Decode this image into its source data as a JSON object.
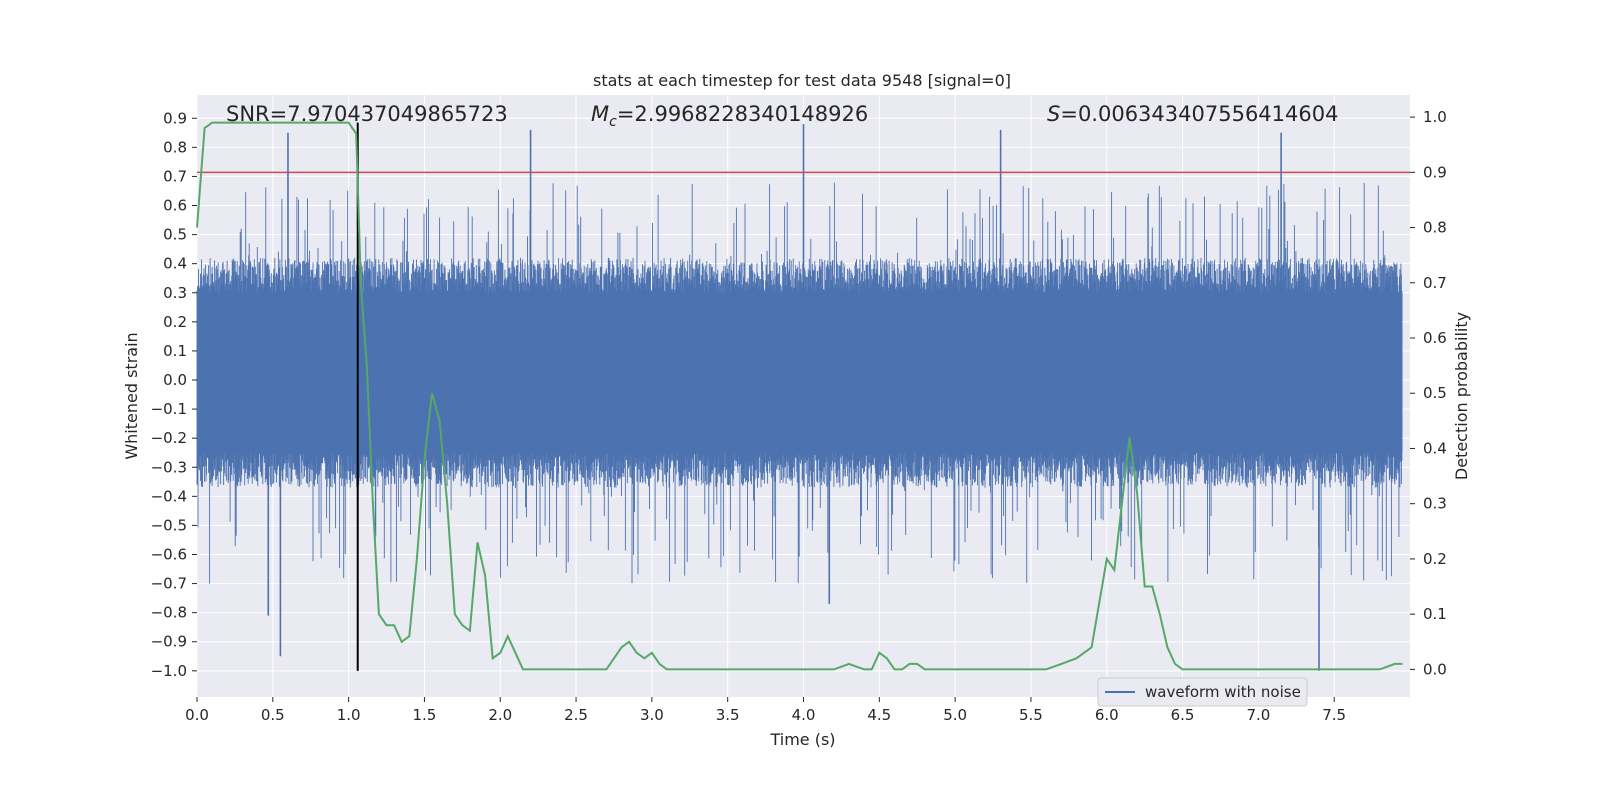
{
  "chart_data": {
    "type": "line",
    "title": "stats at each timestep for test data 9548 [signal=0]",
    "xlabel": "Time (s)",
    "ylabel_left": "Whitened strain",
    "ylabel_right": "Detection probability",
    "xlim": [
      0.0,
      8.0
    ],
    "ylim_left": [
      -1.09,
      0.98
    ],
    "ylim_right": [
      -0.05,
      1.04
    ],
    "x_ticks": [
      "0.0",
      "0.5",
      "1.0",
      "1.5",
      "2.0",
      "2.5",
      "3.0",
      "3.5",
      "4.0",
      "4.5",
      "5.0",
      "5.5",
      "6.0",
      "6.5",
      "7.0",
      "7.5"
    ],
    "y_left_ticks": [
      "0.9",
      "0.8",
      "0.7",
      "0.6",
      "0.5",
      "0.4",
      "0.3",
      "0.2",
      "0.1",
      "0.0",
      "−0.1",
      "−0.2",
      "−0.3",
      "−0.4",
      "−0.5",
      "−0.6",
      "−0.7",
      "−0.8",
      "−0.9",
      "−1.0"
    ],
    "y_right_ticks": [
      "1.0",
      "0.9",
      "0.8",
      "0.7",
      "0.6",
      "0.5",
      "0.4",
      "0.3",
      "0.2",
      "0.1",
      "0.0"
    ],
    "annotations": {
      "snr": "SNR=7.970437049865723",
      "mc_symbol": "M",
      "mc_sub": "c",
      "mc_value": "=2.9968228340148926",
      "s_symbol": "S",
      "s_value": "=0.006343407556414604"
    },
    "threshold_line": {
      "value_right_axis": 0.9,
      "color": "#c44e52"
    },
    "vertical_marker": {
      "x": 1.06,
      "color": "#000000"
    },
    "colors": {
      "waveform": "#4c72b0",
      "probability": "#55a868",
      "background": "#eaeaf2",
      "grid": "#ffffff"
    },
    "series": [
      {
        "name": "waveform with noise",
        "axis": "left",
        "description_envelope": {
          "core_band": [
            -0.25,
            0.3
          ],
          "spike_peaks": [
            {
              "x": 0.6,
              "y": 0.85
            },
            {
              "x": 2.2,
              "y": 0.86
            },
            {
              "x": 4.0,
              "y": 0.88
            },
            {
              "x": 5.3,
              "y": 0.86
            },
            {
              "x": 7.15,
              "y": 0.85
            },
            {
              "x": 0.55,
              "y": -0.95
            },
            {
              "x": 7.4,
              "y": -1.0
            },
            {
              "x": 4.17,
              "y": -0.77
            },
            {
              "x": 0.47,
              "y": -0.81
            }
          ]
        }
      },
      {
        "name": "detection probability",
        "axis": "right",
        "x": [
          0.0,
          0.05,
          0.1,
          0.2,
          0.3,
          0.4,
          0.5,
          0.6,
          0.7,
          0.8,
          0.9,
          1.0,
          1.05,
          1.08,
          1.12,
          1.16,
          1.2,
          1.25,
          1.3,
          1.35,
          1.4,
          1.45,
          1.5,
          1.55,
          1.6,
          1.65,
          1.7,
          1.75,
          1.8,
          1.85,
          1.9,
          1.95,
          2.0,
          2.05,
          2.1,
          2.15,
          2.2,
          2.25,
          2.3,
          2.35,
          2.4,
          2.5,
          2.6,
          2.7,
          2.8,
          2.85,
          2.9,
          2.95,
          3.0,
          3.05,
          3.1,
          3.15,
          3.2,
          3.25,
          3.3,
          3.5,
          3.6,
          3.7,
          3.8,
          3.9,
          4.0,
          4.1,
          4.2,
          4.3,
          4.4,
          4.45,
          4.5,
          4.55,
          4.6,
          4.65,
          4.7,
          4.75,
          4.8,
          4.9,
          5.0,
          5.2,
          5.4,
          5.6,
          5.7,
          5.8,
          5.85,
          5.9,
          5.95,
          6.0,
          6.05,
          6.1,
          6.15,
          6.2,
          6.25,
          6.3,
          6.35,
          6.4,
          6.45,
          6.5,
          6.55,
          6.6,
          6.7,
          6.8,
          7.0,
          7.1,
          7.2,
          7.3,
          7.4,
          7.5,
          7.6,
          7.7,
          7.8,
          7.9,
          7.95
        ],
        "y": [
          0.8,
          0.98,
          0.99,
          0.99,
          0.99,
          0.99,
          0.99,
          0.99,
          0.99,
          0.99,
          0.99,
          0.99,
          0.97,
          0.7,
          0.55,
          0.3,
          0.1,
          0.08,
          0.08,
          0.05,
          0.06,
          0.2,
          0.38,
          0.5,
          0.45,
          0.3,
          0.1,
          0.08,
          0.07,
          0.23,
          0.17,
          0.02,
          0.03,
          0.06,
          0.03,
          0.0,
          0.0,
          0.0,
          0.0,
          0.0,
          0.0,
          0.0,
          0.0,
          0.0,
          0.04,
          0.05,
          0.03,
          0.02,
          0.03,
          0.01,
          0.0,
          0.0,
          0.0,
          0.0,
          0.0,
          0.0,
          0.0,
          0.0,
          0.0,
          0.0,
          0.0,
          0.0,
          0.0,
          0.01,
          0.0,
          0.0,
          0.03,
          0.02,
          0.0,
          0.0,
          0.01,
          0.01,
          0.0,
          0.0,
          0.0,
          0.0,
          0.0,
          0.0,
          0.01,
          0.02,
          0.03,
          0.04,
          0.12,
          0.2,
          0.18,
          0.3,
          0.42,
          0.32,
          0.15,
          0.15,
          0.1,
          0.04,
          0.01,
          0.0,
          0.0,
          0.0,
          0.0,
          0.0,
          0.0,
          0.0,
          0.0,
          0.0,
          0.0,
          0.0,
          0.0,
          0.0,
          0.0,
          0.01,
          0.01
        ]
      }
    ],
    "legend": {
      "label": "waveform with noise",
      "placement": "lower-right"
    }
  }
}
